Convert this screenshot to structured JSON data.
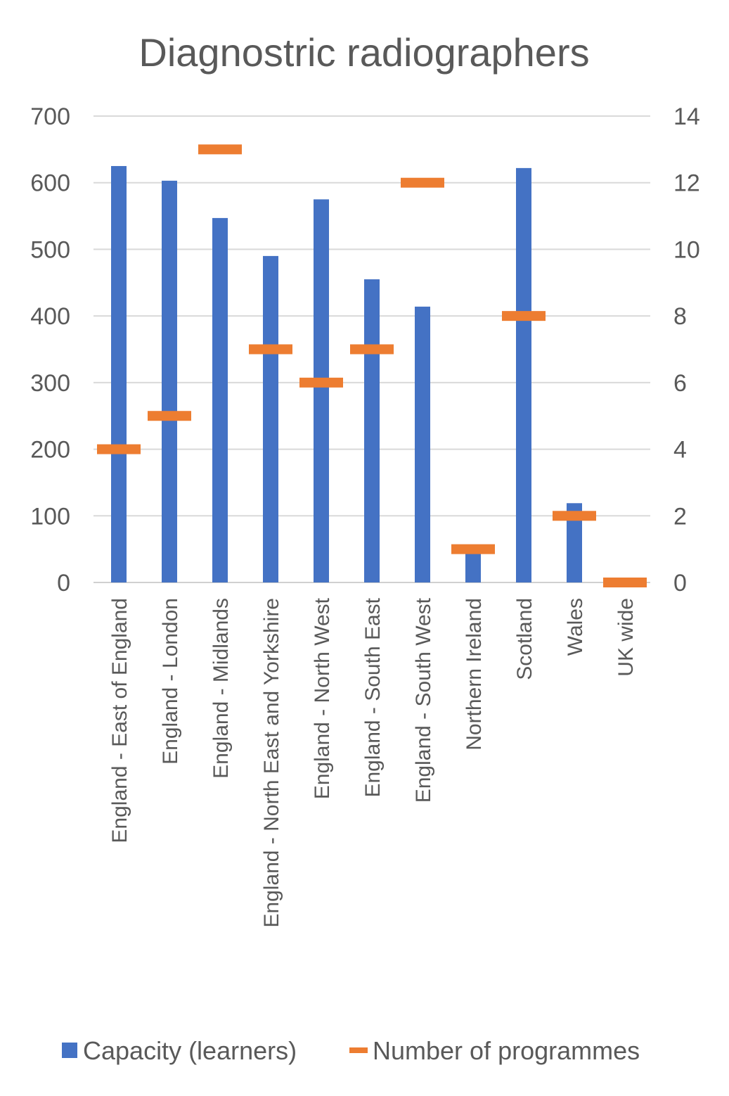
{
  "chart_data": {
    "type": "bar",
    "title": "Diagnostric radiographers",
    "categories": [
      "England - East of England",
      "England - London",
      "England - Midlands",
      "England - North East and Yorkshire",
      "England - North West",
      "England - South East",
      "England - South West",
      "Northern Ireland",
      "Scotland",
      "Wales",
      "UK wide"
    ],
    "series": [
      {
        "name": "Capacity (learners)",
        "axis": "primary",
        "style": "bar",
        "color": "#4472C4",
        "values": [
          625,
          603,
          547,
          490,
          575,
          455,
          414,
          45,
          622,
          119,
          0
        ]
      },
      {
        "name": "Number of programmes",
        "axis": "secondary",
        "style": "dash-marker",
        "color": "#ED7D31",
        "values": [
          4,
          5,
          13,
          7,
          6,
          7,
          12,
          1,
          8,
          2,
          0
        ]
      }
    ],
    "y_left": {
      "min": 0,
      "max": 700,
      "ticks": [
        "0",
        "100",
        "200",
        "300",
        "400",
        "500",
        "600",
        "700"
      ]
    },
    "y_right": {
      "min": 0,
      "max": 14,
      "ticks": [
        "0",
        "2",
        "4",
        "6",
        "8",
        "10",
        "12",
        "14"
      ]
    },
    "grid": true,
    "legend": "bottom"
  }
}
